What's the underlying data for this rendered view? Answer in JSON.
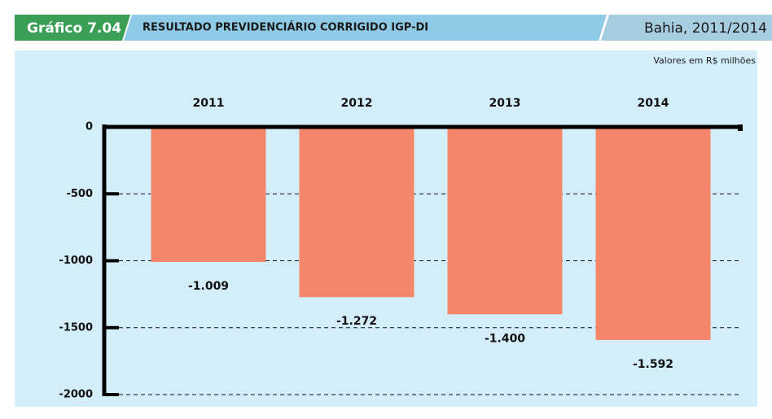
{
  "header": {
    "label": "Gráfico 7.04",
    "title": "RESULTADO PREVIDENCIÁRIO CORRIGIDO IGP-DI",
    "region": "Bahia, 2011/2014"
  },
  "chart_data": {
    "type": "bar",
    "unit_note": "Valores em R$ milhões",
    "categories": [
      "2011",
      "2012",
      "2013",
      "2014"
    ],
    "values": [
      -1009,
      -1272,
      -1400,
      -1592
    ],
    "value_labels": [
      "-1.009",
      "-1.272",
      "-1.400",
      "-1.592"
    ],
    "color": "#f4876a",
    "ylim": [
      -2000,
      0
    ],
    "yticks": [
      0,
      -500,
      -1000,
      -1500,
      -2000
    ],
    "grid": true
  }
}
